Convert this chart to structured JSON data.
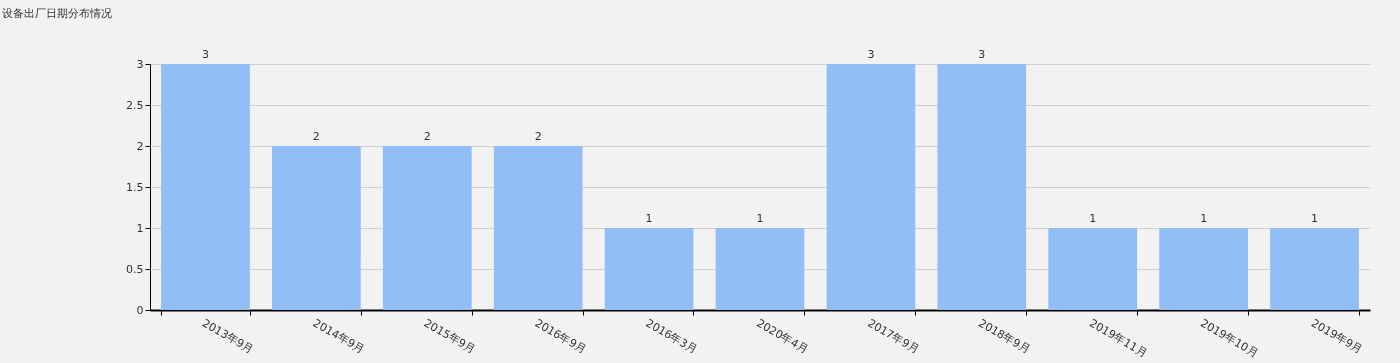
{
  "chart_data": {
    "type": "bar",
    "title": "设备出厂日期分布情况",
    "categories": [
      "2013年9月",
      "2014年9月",
      "2015年9月",
      "2016年9月",
      "2016年3月",
      "2020年4月",
      "2017年9月",
      "2018年9月",
      "2019年11月",
      "2019年10月",
      "2019年9月"
    ],
    "values": [
      3,
      2,
      2,
      2,
      1,
      1,
      3,
      3,
      1,
      1,
      1
    ],
    "color": "#91bff5",
    "ylim": [
      0,
      3
    ],
    "yticks": [
      0,
      0.5,
      1,
      1.5,
      2,
      2.5,
      3
    ],
    "grid": "y",
    "data_labels": true
  }
}
